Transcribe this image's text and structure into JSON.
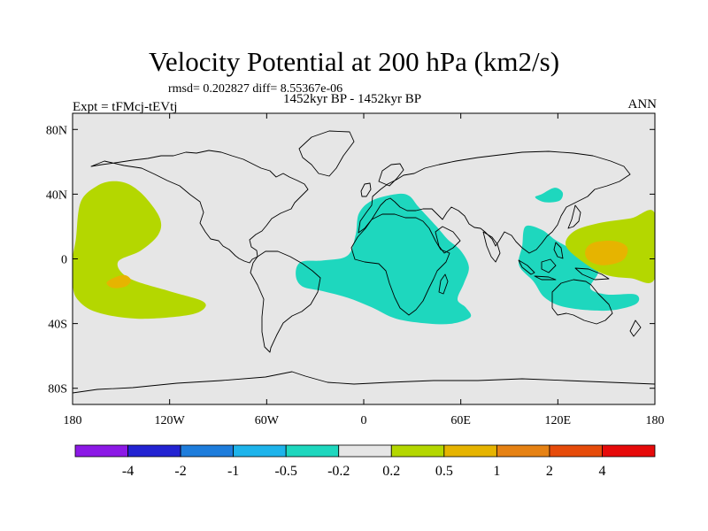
{
  "chart_data": {
    "type": "heatmap",
    "title": "Velocity Potential at 200 hPa (km2/s)",
    "stats_text": "rmsd= 0.202827 diff= 8.55367e-06",
    "period": "1452kyr BP - 1452kyr BP",
    "experiment": "Expt = tFMcj-tEVtj",
    "season": "ANN",
    "projection": "cylindrical equidistant",
    "lon_range": [
      -180,
      180
    ],
    "lat_range": [
      -90,
      90
    ],
    "lon_ticks": [
      {
        "value": -180,
        "label": "180"
      },
      {
        "value": -120,
        "label": "120W"
      },
      {
        "value": -60,
        "label": "60W"
      },
      {
        "value": 0,
        "label": "0"
      },
      {
        "value": 60,
        "label": "60E"
      },
      {
        "value": 120,
        "label": "120E"
      },
      {
        "value": 180,
        "label": "180"
      }
    ],
    "lat_ticks": [
      {
        "value": 80,
        "label": "80N"
      },
      {
        "value": 40,
        "label": "40N"
      },
      {
        "value": 0,
        "label": "0"
      },
      {
        "value": -40,
        "label": "40S"
      },
      {
        "value": -80,
        "label": "80S"
      }
    ],
    "colorbar": {
      "colors": [
        "#8c19e6",
        "#2323d2",
        "#1e7ddc",
        "#1eb4eb",
        "#1ed7be",
        "#e6e6e6",
        "#b4d700",
        "#e6b400",
        "#e68214",
        "#e64b0a",
        "#e60a0a"
      ],
      "labels": [
        "-4",
        "-2",
        "-1",
        "-0.5",
        "-0.2",
        "0.2",
        "0.5",
        "1",
        "2",
        "4"
      ]
    },
    "anomaly_regions": [
      {
        "name": "central-pacific-positive",
        "color": "#b4d700",
        "class": "0.2 to 0.5",
        "outline": [
          [
            -178,
            12
          ],
          [
            -175,
            35
          ],
          [
            -165,
            45
          ],
          [
            -155,
            48
          ],
          [
            -145,
            46
          ],
          [
            -135,
            38
          ],
          [
            -126,
            25
          ],
          [
            -127,
            15
          ],
          [
            -138,
            5
          ],
          [
            -152,
            -2
          ],
          [
            -145,
            -12
          ],
          [
            -120,
            -20
          ],
          [
            -100,
            -26
          ],
          [
            -99,
            -31
          ],
          [
            -110,
            -35
          ],
          [
            -140,
            -37
          ],
          [
            -165,
            -33
          ],
          [
            -177,
            -25
          ],
          [
            -180,
            -15
          ],
          [
            -180,
            0
          ]
        ]
      },
      {
        "name": "south-pacific-core",
        "color": "#e6b400",
        "class": "0.5 to 1",
        "outline": [
          [
            -155,
            -12
          ],
          [
            -148,
            -10
          ],
          [
            -144,
            -13
          ],
          [
            -147,
            -17
          ],
          [
            -155,
            -18
          ],
          [
            -159,
            -15
          ]
        ]
      },
      {
        "name": "atlantic-africa-negative",
        "color": "#1ed7be",
        "class": "-0.5 to -0.2",
        "outline": [
          [
            -39,
            -2
          ],
          [
            -25,
            -1
          ],
          [
            -10,
            2
          ],
          [
            -5,
            15
          ],
          [
            -3,
            28
          ],
          [
            5,
            36
          ],
          [
            20,
            40
          ],
          [
            28,
            39
          ],
          [
            34,
            32
          ],
          [
            45,
            20
          ],
          [
            52,
            12
          ],
          [
            60,
            5
          ],
          [
            65,
            -5
          ],
          [
            62,
            -15
          ],
          [
            58,
            -25
          ],
          [
            63,
            -30
          ],
          [
            66,
            -36
          ],
          [
            55,
            -40
          ],
          [
            40,
            -40
          ],
          [
            20,
            -37
          ],
          [
            5,
            -30
          ],
          [
            -10,
            -24
          ],
          [
            -25,
            -20
          ],
          [
            -38,
            -17
          ],
          [
            -42,
            -10
          ]
        ]
      },
      {
        "name": "east-asia-negative",
        "color": "#1ed7be",
        "class": "-0.5 to -0.2",
        "outline": [
          [
            110,
            40
          ],
          [
            118,
            44
          ],
          [
            123,
            41
          ],
          [
            121,
            36
          ],
          [
            112,
            35
          ],
          [
            106,
            38
          ]
        ]
      },
      {
        "name": "maritime-continent-negative",
        "color": "#1ed7be",
        "class": "-0.5 to -0.2",
        "outline": [
          [
            100,
            20
          ],
          [
            110,
            18
          ],
          [
            118,
            12
          ],
          [
            125,
            8
          ],
          [
            140,
            0
          ],
          [
            145,
            -8
          ],
          [
            140,
            -18
          ],
          [
            150,
            -22
          ],
          [
            168,
            -22
          ],
          [
            168,
            -28
          ],
          [
            150,
            -32
          ],
          [
            125,
            -30
          ],
          [
            112,
            -24
          ],
          [
            105,
            -14
          ],
          [
            96,
            -4
          ],
          [
            98,
            8
          ]
        ]
      },
      {
        "name": "west-pacific-positive",
        "color": "#b4d700",
        "class": "0.2 to 0.5",
        "outline": [
          [
            125,
            8
          ],
          [
            130,
            17
          ],
          [
            145,
            22
          ],
          [
            165,
            25
          ],
          [
            180,
            28
          ],
          [
            180,
            -12
          ],
          [
            165,
            -12
          ],
          [
            150,
            -10
          ],
          [
            137,
            -3
          ]
        ]
      },
      {
        "name": "west-pacific-core",
        "color": "#e6b400",
        "class": "0.5 to 1",
        "outline": [
          [
            137,
            5
          ],
          [
            142,
            10
          ],
          [
            155,
            11
          ],
          [
            163,
            7
          ],
          [
            160,
            -1
          ],
          [
            148,
            -4
          ],
          [
            139,
            -1
          ]
        ]
      }
    ]
  }
}
